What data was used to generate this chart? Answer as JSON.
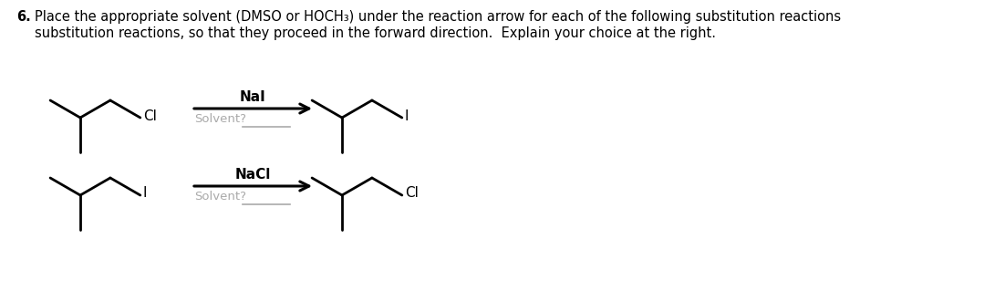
{
  "title_number": "6.",
  "title_line1": "Place the appropriate solvent (DMSO or HOCH₃) under the reaction arrow for each of the following substitution reactions",
  "title_line2": "substitution reactions, so that they proceed in the forward direction.  Explain your choice at the right.",
  "reaction1_reagent": "NaI",
  "reaction1_solvent_label": "Solvent?",
  "reaction1_left_label": "Cl",
  "reaction1_right_label": "I",
  "reaction2_reagent": "NaCl",
  "reaction2_solvent_label": "Solvent?",
  "reaction2_left_label": "I",
  "reaction2_right_label": "Cl",
  "text_color": "#000000",
  "solvent_text_color": "#aaaaaa",
  "line_color": "#000000",
  "background_color": "#ffffff",
  "arrow_color": "#000000",
  "title_fontsize": 10.5,
  "reagent_fontsize": 11,
  "solvent_fontsize": 9.5,
  "label_fontsize": 11
}
